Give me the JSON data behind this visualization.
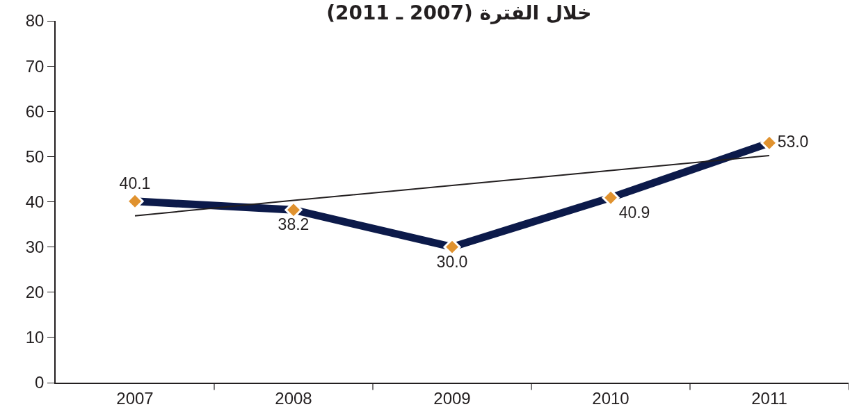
{
  "chart_data": {
    "type": "line",
    "title": "خلال الفترة (2007 ـ 2011)",
    "categories": [
      "2007",
      "2008",
      "2009",
      "2010",
      "2011"
    ],
    "series": [
      {
        "color": "#0c1a4a",
        "colors": [
          "#e0922f",
          "#e0922f",
          "#e0922f",
          "#e0922f",
          "#e0922f"
        ],
        "values": [
          40.1,
          38.2,
          30.0,
          40.9,
          53.0
        ],
        "value_labels": [
          "40.1",
          "38.2",
          "30.0",
          "40.9",
          "53.0"
        ]
      },
      {
        "type": "line",
        "color": "#231f20",
        "values": [
          36.9,
          40.3,
          43.6,
          46.9,
          50.2
        ],
        "marker": "none"
      }
    ],
    "ylim": [
      0,
      80
    ],
    "yticks": [
      0,
      10,
      20,
      30,
      40,
      50,
      60,
      70,
      80
    ],
    "marker": "diamond"
  }
}
